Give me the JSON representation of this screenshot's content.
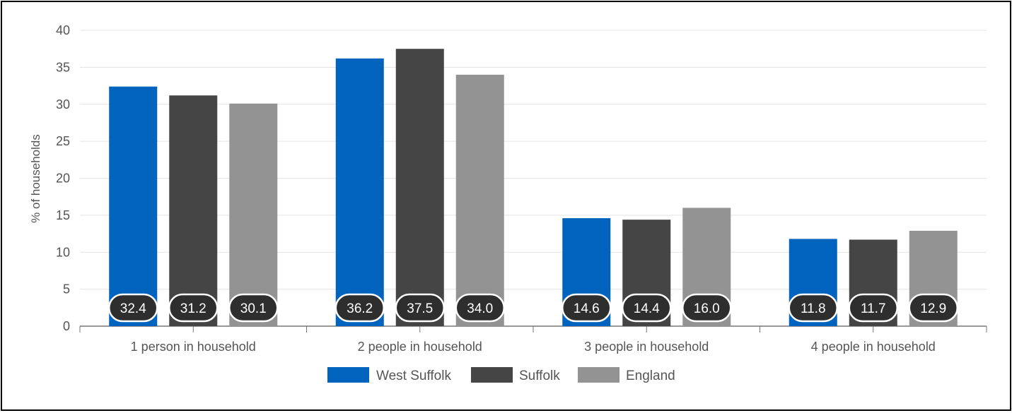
{
  "chart_data": {
    "type": "bar",
    "title": "",
    "xlabel": "",
    "ylabel": "% of households",
    "ylim": [
      0,
      40
    ],
    "yticks": [
      0,
      5,
      10,
      15,
      20,
      25,
      30,
      35,
      40
    ],
    "grid": true,
    "legend_position": "bottom",
    "categories": [
      "1 person in household",
      "2 people in household",
      "3 people in household",
      "4 people in household"
    ],
    "series": [
      {
        "name": "West Suffolk",
        "color": "#0063BE",
        "values": [
          32.4,
          36.2,
          14.6,
          11.8
        ],
        "labels": [
          "32.4",
          "36.2",
          "14.6",
          "11.8"
        ]
      },
      {
        "name": "Suffolk",
        "color": "#454545",
        "values": [
          31.2,
          37.5,
          14.4,
          11.7
        ],
        "labels": [
          "31.2",
          "37.5",
          "14.4",
          "11.7"
        ]
      },
      {
        "name": "England",
        "color": "#939393",
        "values": [
          30.1,
          34.0,
          16.0,
          12.9
        ],
        "labels": [
          "30.1",
          "34.0",
          "16.0",
          "12.9"
        ]
      }
    ]
  }
}
